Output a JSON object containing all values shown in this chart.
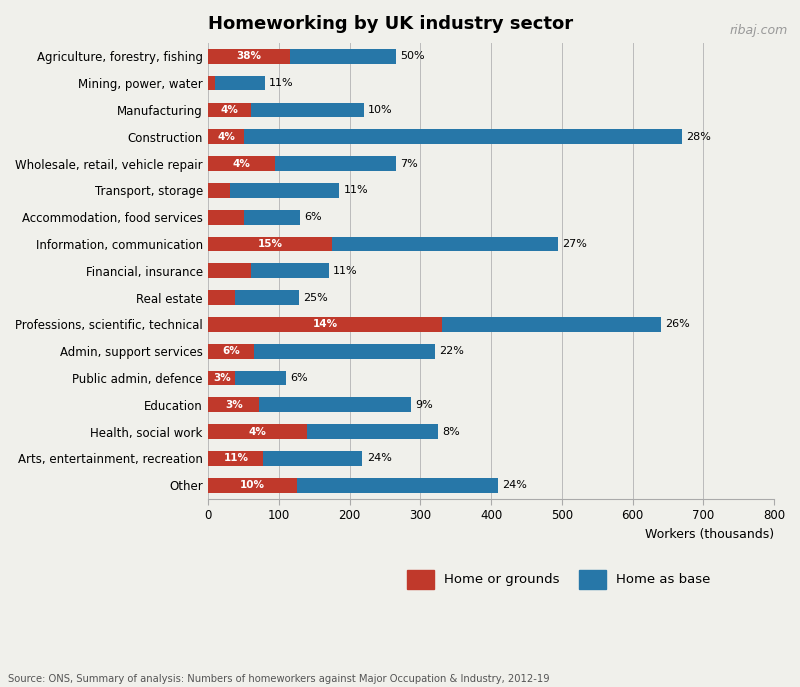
{
  "title": "Homeworking by UK industry sector",
  "xlabel": "Workers (thousands)",
  "source": "Source: ONS, Summary of analysis: Numbers of homeworkers against Major Occupation & Industry, 2012-19",
  "watermark": "ribaj.com",
  "categories": [
    "Agriculture, forestry, fishing",
    "Mining, power, water",
    "Manufacturing",
    "Construction",
    "Wholesale, retail, vehicle repair",
    "Transport, storage",
    "Accommodation, food services",
    "Information, communication",
    "Financial, insurance",
    "Real estate",
    "Professions, scientific, technical",
    "Admin, support services",
    "Public admin, defence",
    "Education",
    "Health, social work",
    "Arts, entertainment, recreation",
    "Other"
  ],
  "home_or_grounds": [
    115,
    10,
    60,
    50,
    95,
    30,
    50,
    175,
    60,
    38,
    330,
    65,
    38,
    72,
    140,
    78,
    125
  ],
  "home_as_base": [
    150,
    70,
    160,
    620,
    170,
    155,
    80,
    320,
    110,
    90,
    310,
    255,
    72,
    215,
    185,
    140,
    285
  ],
  "pct_grounds": [
    "38%",
    "",
    "4%",
    "4%",
    "4%",
    "",
    "",
    "15%",
    "",
    "",
    "14%",
    "6%",
    "3%",
    "3%",
    "4%",
    "11%",
    "10%"
  ],
  "pct_base": [
    "50%",
    "11%",
    "10%",
    "28%",
    "7%",
    "11%",
    "6%",
    "27%",
    "11%",
    "25%",
    "26%",
    "22%",
    "6%",
    "9%",
    "8%",
    "24%",
    "24%"
  ],
  "color_red": "#c0392b",
  "color_blue": "#2777a8",
  "grid_color": "#bbbbbb",
  "bg_color": "#f0f0eb",
  "xlim": [
    0,
    800
  ],
  "bar_height": 0.55
}
